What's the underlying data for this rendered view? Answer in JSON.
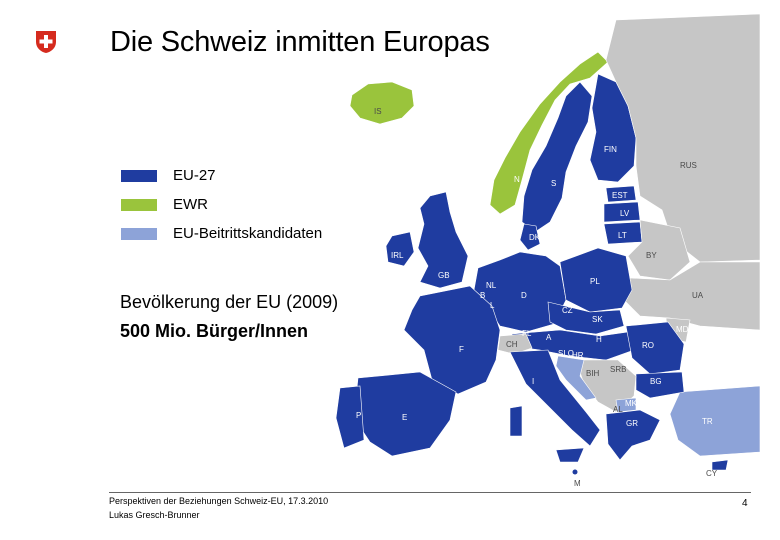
{
  "title": "Die Schweiz inmitten Europas",
  "colors": {
    "eu27": "#1f3ca0",
    "ewr": "#9ac43c",
    "candidates": "#8da3d8",
    "non_member": "#c6c6c6",
    "sea": "#ffffff",
    "swiss_red": "#d52b1e"
  },
  "legend": [
    {
      "label": "EU-27",
      "color": "#1f3ca0"
    },
    {
      "label": "EWR",
      "color": "#9ac43c"
    },
    {
      "label": "EU-Beitrittskandidaten",
      "color": "#8da3d8"
    }
  ],
  "population": {
    "line1": "Bevölkerung der EU (2009)",
    "line2": "500 Mio. Bürger/Innen"
  },
  "footer": {
    "line1": "Perspektiven der Beziehungen Schweiz-EU, 17.3.2010",
    "line2": "Lukas Gresch-Brunner",
    "page": "4"
  },
  "map_labels": {
    "IS": "IS",
    "N": "N",
    "S": "S",
    "FIN": "FIN",
    "RUS": "RUS",
    "EST": "EST",
    "LV": "LV",
    "LT": "LT",
    "BY": "BY",
    "IRL": "IRL",
    "GB": "GB",
    "NL": "NL",
    "B": "B",
    "L": "L",
    "D": "D",
    "PL": "PL",
    "CZ": "CZ",
    "SK": "SK",
    "UA": "UA",
    "MD": "MD",
    "F": "F",
    "CH": "CH",
    "FL": "FL",
    "A": "A",
    "H": "H",
    "RO": "RO",
    "SLO": "SLO",
    "HR": "HR",
    "BIH": "BIH",
    "SRB": "SRB",
    "BG": "BG",
    "MK": "MK",
    "AL": "AL",
    "P": "P",
    "E": "E",
    "I": "I",
    "GR": "GR",
    "TR": "TR",
    "CY": "CY",
    "M": "M",
    "DK": "DK"
  }
}
